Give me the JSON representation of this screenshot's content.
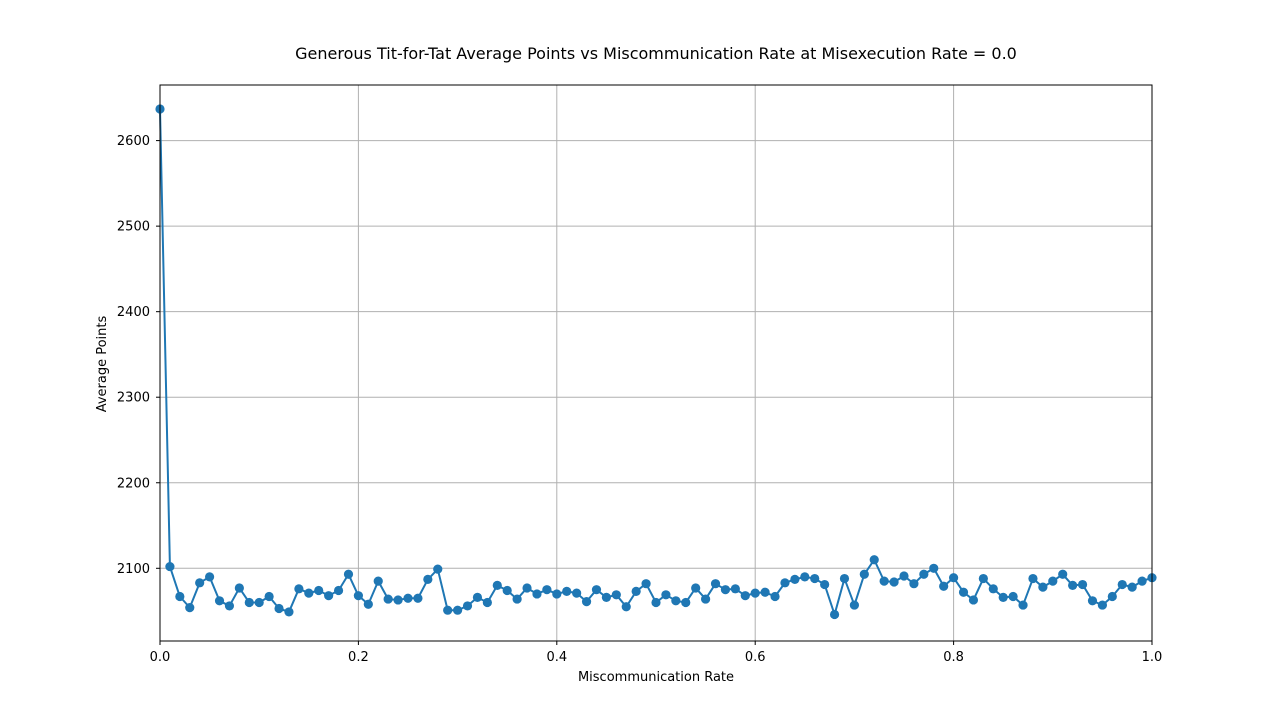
{
  "chart_data": {
    "type": "line",
    "title": "Generous Tit-for-Tat Average Points vs Miscommunication Rate at Misexecution Rate = 0.0",
    "xlabel": "Miscommunication Rate",
    "ylabel": "Average Points",
    "xlim": [
      0.0,
      1.0
    ],
    "ylim": [
      2015,
      2665
    ],
    "xticks": [
      0.0,
      0.2,
      0.4,
      0.6,
      0.8,
      1.0
    ],
    "xtick_labels": [
      "0.0",
      "0.2",
      "0.4",
      "0.6",
      "0.8",
      "1.0"
    ],
    "yticks": [
      2100,
      2200,
      2300,
      2400,
      2500,
      2600
    ],
    "ytick_labels": [
      "2100",
      "2200",
      "2300",
      "2400",
      "2500",
      "2600"
    ],
    "grid": true,
    "legend": "none",
    "series": [
      {
        "color": "#1f77b4",
        "marker": "circle",
        "x": [
          0.0,
          0.01,
          0.02,
          0.03,
          0.04,
          0.05,
          0.06,
          0.07,
          0.08,
          0.09,
          0.1,
          0.11,
          0.12,
          0.13,
          0.14,
          0.15,
          0.16,
          0.17,
          0.18,
          0.19,
          0.2,
          0.21,
          0.22,
          0.23,
          0.24,
          0.25,
          0.26,
          0.27,
          0.28,
          0.29,
          0.3,
          0.31,
          0.32,
          0.33,
          0.34,
          0.35,
          0.36,
          0.37,
          0.38,
          0.39,
          0.4,
          0.41,
          0.42,
          0.43,
          0.44,
          0.45,
          0.46,
          0.47,
          0.48,
          0.49,
          0.5,
          0.51,
          0.52,
          0.53,
          0.54,
          0.55,
          0.56,
          0.57,
          0.58,
          0.59,
          0.6,
          0.61,
          0.62,
          0.63,
          0.64,
          0.65,
          0.66,
          0.67,
          0.68,
          0.69,
          0.7,
          0.71,
          0.72,
          0.73,
          0.74,
          0.75,
          0.76,
          0.77,
          0.78,
          0.79,
          0.8,
          0.81,
          0.82,
          0.83,
          0.84,
          0.85,
          0.86,
          0.87,
          0.88,
          0.89,
          0.9,
          0.91,
          0.92,
          0.93,
          0.94,
          0.95,
          0.96,
          0.97,
          0.98,
          0.99,
          1.0
        ],
        "y": [
          2637,
          2102,
          2067,
          2054,
          2083,
          2090,
          2062,
          2056,
          2077,
          2060,
          2060,
          2067,
          2053,
          2049,
          2076,
          2071,
          2074,
          2068,
          2074,
          2093,
          2068,
          2058,
          2085,
          2064,
          2063,
          2065,
          2065,
          2087,
          2099,
          2051,
          2051,
          2056,
          2066,
          2060,
          2080,
          2074,
          2064,
          2077,
          2070,
          2075,
          2070,
          2073,
          2071,
          2061,
          2075,
          2066,
          2069,
          2055,
          2073,
          2082,
          2060,
          2069,
          2062,
          2060,
          2077,
          2064,
          2082,
          2075,
          2076,
          2068,
          2071,
          2072,
          2067,
          2083,
          2087,
          2090,
          2088,
          2081,
          2046,
          2088,
          2057,
          2093,
          2110,
          2085,
          2084,
          2091,
          2082,
          2093,
          2100,
          2079,
          2089,
          2072,
          2063,
          2088,
          2076,
          2066,
          2067,
          2057,
          2088,
          2078,
          2085,
          2093,
          2080,
          2081,
          2062,
          2057,
          2067,
          2081,
          2078,
          2085,
          2089
        ]
      }
    ]
  }
}
